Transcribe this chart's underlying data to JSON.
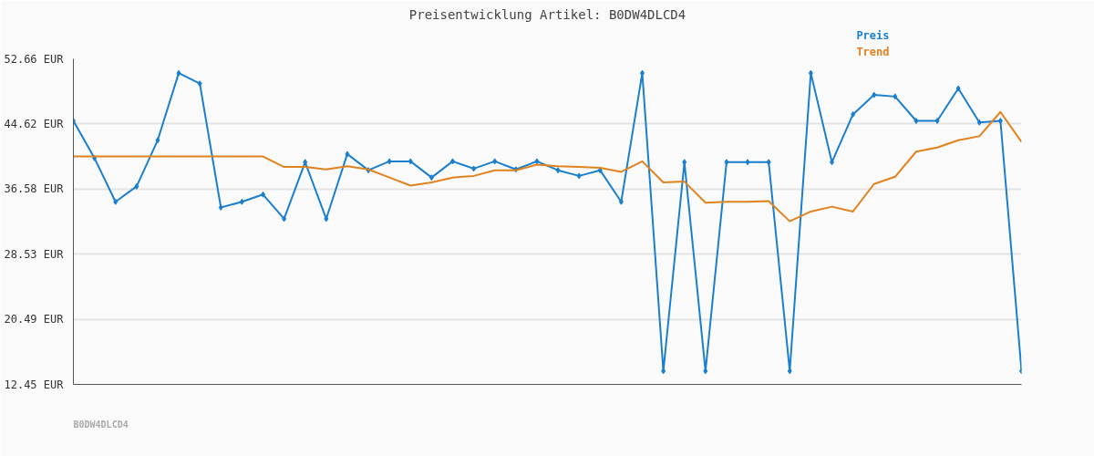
{
  "chart_data": {
    "type": "line",
    "title": "Preisentwicklung Artikel: B0DW4DLCD4",
    "categories": [
      null,
      null,
      null,
      null,
      null,
      null,
      null,
      null,
      null,
      null,
      null,
      null,
      null,
      null,
      null,
      null,
      null,
      null,
      null,
      null,
      null,
      null,
      null,
      null,
      null,
      null,
      null,
      null,
      null,
      null,
      null,
      null,
      null,
      null,
      null,
      null,
      null,
      null,
      null,
      null,
      null,
      null,
      null,
      null,
      null,
      null
    ],
    "series": [
      {
        "name": "Preis",
        "color": "#1a7fcf",
        "marker": "diamond",
        "values": [
          45.0,
          40.4,
          35.0,
          36.9,
          42.6,
          50.9,
          49.6,
          34.3,
          35.0,
          35.9,
          32.9,
          39.9,
          32.9,
          40.9,
          38.9,
          40.0,
          40.0,
          38.0,
          40.0,
          39.1,
          40.0,
          39.0,
          40.0,
          38.9,
          38.2,
          38.9,
          35.0,
          50.9,
          14.1,
          39.9,
          14.1,
          39.9,
          39.9,
          39.9,
          14.1,
          50.9,
          39.9,
          45.8,
          48.2,
          48.0,
          45.0,
          45.0,
          49.0,
          44.8,
          45.0,
          14.1
        ]
      },
      {
        "name": "Trend",
        "color": "#e0821e",
        "marker": "none",
        "values": [
          40.6,
          40.6,
          40.6,
          40.6,
          40.6,
          40.6,
          40.6,
          40.6,
          40.6,
          40.6,
          39.3,
          39.3,
          39.0,
          39.4,
          39.0,
          38.0,
          37.0,
          37.4,
          38.0,
          38.2,
          38.9,
          38.9,
          39.6,
          39.4,
          39.3,
          39.2,
          38.7,
          40.0,
          37.4,
          37.5,
          34.9,
          35.0,
          35.0,
          35.1,
          32.6,
          33.8,
          34.4,
          33.8,
          37.2,
          38.1,
          41.2,
          41.7,
          42.6,
          43.1,
          46.1,
          42.4
        ]
      }
    ],
    "ylim": [
      12.45,
      52.66
    ],
    "yticks": [
      {
        "value": 12.45,
        "label": "12.45 EUR"
      },
      {
        "value": 20.49,
        "label": "20.49 EUR"
      },
      {
        "value": 28.53,
        "label": "28.53 EUR"
      },
      {
        "value": 36.58,
        "label": "36.58 EUR"
      },
      {
        "value": 44.62,
        "label": "44.62 EUR"
      },
      {
        "value": 52.66,
        "label": "52.66 EUR"
      }
    ],
    "tick_labels": "y",
    "grid": "y",
    "annotations": [
      "B0DW4DLCD4"
    ]
  }
}
